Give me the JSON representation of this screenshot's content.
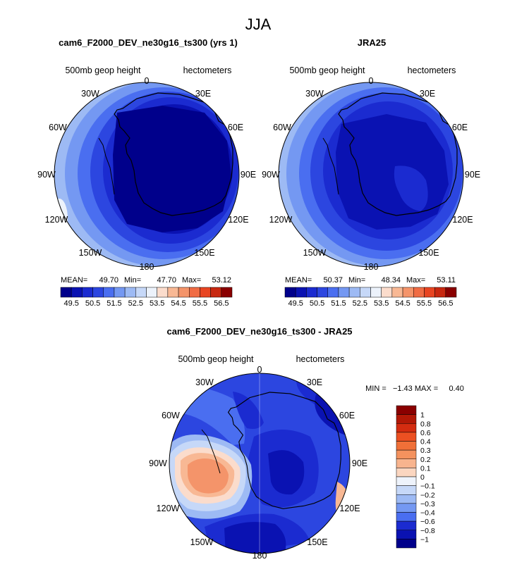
{
  "season": "JJA",
  "colors": {
    "ramp": [
      "#00008b",
      "#0a12b2",
      "#1b2bd0",
      "#2c46e0",
      "#4a6ef0",
      "#7498f2",
      "#9dbaf4",
      "#c6d8f8",
      "#ecf2fb",
      "#fbdccc",
      "#f8b894",
      "#f4946a",
      "#f06c44",
      "#e84522",
      "#c82810",
      "#8a0000"
    ],
    "ocean_far": "#9dbaf4",
    "coastline": "#000000"
  },
  "panels": [
    {
      "title": "cam6_F2000_DEV_ne30g16_ts300 (yrs 1)",
      "left_label": "500mb geop height",
      "right_label": "hectometers",
      "stats": {
        "mean_label": "MEAN=",
        "mean": "49.70",
        "min_label": "Min=",
        "min": "47.70",
        "max_label": "Max=",
        "max": "53.12"
      },
      "colorbar_ticks": [
        "49.5",
        "50.5",
        "51.5",
        "52.5",
        "53.5",
        "54.5",
        "55.5",
        "56.5"
      ],
      "mean_value": 49.7,
      "min_value": 47.7,
      "max_value": 53.12
    },
    {
      "title": "JRA25",
      "left_label": "500mb geop height",
      "right_label": "hectometers",
      "stats": {
        "mean_label": "MEAN=",
        "mean": "50.37",
        "min_label": "Min=",
        "min": "48.34",
        "max_label": "Max=",
        "max": "53.11"
      },
      "colorbar_ticks": [
        "49.5",
        "50.5",
        "51.5",
        "52.5",
        "53.5",
        "54.5",
        "55.5",
        "56.5"
      ],
      "mean_value": 50.37,
      "min_value": 48.34,
      "max_value": 53.11
    }
  ],
  "lon_labels": [
    "0",
    "30E",
    "60E",
    "90E",
    "120E",
    "150E",
    "180",
    "150W",
    "120W",
    "90W",
    "60W",
    "30W"
  ],
  "diff": {
    "title": "cam6_F2000_DEV_ne30g16_ts300 - JRA25",
    "left_label": "500mb geop height",
    "right_label": "hectometers",
    "min_max": "MIN =   −1.43 MAX =     0.40",
    "min_value": -1.43,
    "max_value": 0.4,
    "colorbar_labels": [
      "1",
      "0.8",
      "0.6",
      "0.4",
      "0.3",
      "0.2",
      "0.1",
      "0",
      "−0.1",
      "−0.2",
      "−0.3",
      "−0.4",
      "−0.6",
      "−0.8",
      "−1"
    ],
    "colorbar_colors": [
      "#8a0000",
      "#b21806",
      "#d42c10",
      "#ec5022",
      "#f07038",
      "#f4925e",
      "#f8b48e",
      "#fbd6c0",
      "#eef3fb",
      "#c6d8f8",
      "#9dbaf4",
      "#7498f2",
      "#4a6ef0",
      "#1b2bd0",
      "#0a12b2",
      "#00008b"
    ]
  },
  "chart_data": [
    {
      "type": "heatmap",
      "title": "cam6_F2000_DEV_ne30g16_ts300 (yrs 1)",
      "variable": "500mb geop height",
      "units": "hectometers",
      "mean": 49.7,
      "min": 47.7,
      "max": 53.12,
      "levels": [
        49.5,
        50.5,
        51.5,
        52.5,
        53.5,
        54.5,
        55.5,
        56.5
      ]
    },
    {
      "type": "heatmap",
      "title": "JRA25",
      "variable": "500mb geop height",
      "units": "hectometers",
      "mean": 50.37,
      "min": 48.34,
      "max": 53.11,
      "levels": [
        49.5,
        50.5,
        51.5,
        52.5,
        53.5,
        54.5,
        55.5,
        56.5
      ]
    },
    {
      "type": "heatmap",
      "title": "cam6_F2000_DEV_ne30g16_ts300 - JRA25",
      "variable": "500mb geop height",
      "units": "hectometers",
      "min": -1.43,
      "max": 0.4,
      "levels": [
        -1,
        -0.8,
        -0.6,
        -0.4,
        -0.3,
        -0.2,
        -0.1,
        0,
        0.1,
        0.2,
        0.3,
        0.4,
        0.6,
        0.8,
        1
      ]
    }
  ]
}
